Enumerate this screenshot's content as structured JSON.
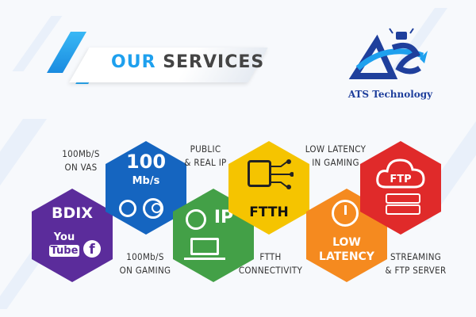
{
  "header": {
    "title_part1": "OUR",
    "title_part2": "SERVICES"
  },
  "brand": {
    "name": "ATS Technology",
    "logo_text": "ATS"
  },
  "tiles": {
    "bdix": {
      "label": "BDIX",
      "youtube_line1": "You",
      "youtube_line2": "Tube"
    },
    "speed": {
      "number": "100",
      "unit": "Mb/s"
    },
    "ip": {
      "label": "IP"
    },
    "ftth": {
      "label": "FTTH"
    },
    "latency": {
      "line1": "LOW",
      "line2": "LATENCY"
    },
    "ftp": {
      "label": "FTP"
    }
  },
  "captions": {
    "vas": {
      "line1": "100Mb/S",
      "line2": "ON VAS"
    },
    "gaming": {
      "line1": "100Mb/S",
      "line2": "ON GAMING"
    },
    "public_ip": {
      "line1": "PUBLIC",
      "line2": "& REAL IP"
    },
    "ftth": {
      "line1": "FTTH",
      "line2": "CONNECTIVITY"
    },
    "low_latency": {
      "line1": "LOW LATENCY",
      "line2": "IN GAMING"
    },
    "streaming": {
      "line1": "STREAMING",
      "line2": "& FTP SERVER"
    }
  },
  "colors": {
    "accent": "#1ea0ee",
    "purple": "#5b2c9b",
    "blue": "#1565c0",
    "green": "#43a047",
    "yellow": "#f5c400",
    "orange": "#f58a1f",
    "red": "#e02a2a"
  }
}
